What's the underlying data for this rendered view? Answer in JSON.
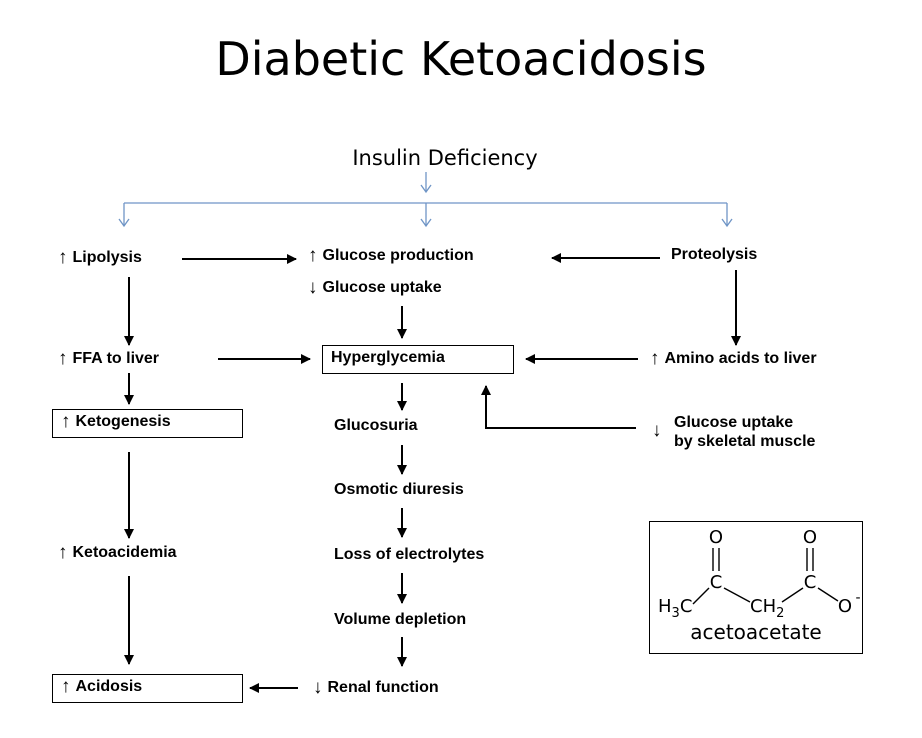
{
  "title": "Diabetic Ketoacidosis",
  "root": "Insulin Deficiency",
  "glyphs": {
    "up": "↑",
    "down": "↓"
  },
  "nodes": {
    "lipolysis": "Lipolysis",
    "glucose_production": "Glucose production",
    "proteolysis": "Proteolysis",
    "glucose_uptake": "Glucose uptake",
    "ffa_to_liver": "FFA to liver",
    "hyperglycemia": "Hyperglycemia",
    "amino_acids_to_liver": "Amino acids to liver",
    "ketogenesis": "Ketogenesis",
    "glucosuria": "Glucosuria",
    "muscle_uptake_line1": "Glucose uptake",
    "muscle_uptake_line2": "by skeletal muscle",
    "osmotic_diuresis": "Osmotic diuresis",
    "ketoacidemia": "Ketoacidemia",
    "loss_of_electrolytes": "Loss of electrolytes",
    "volume_depletion": "Volume depletion",
    "acidosis": "Acidosis",
    "renal_function": "Renal function"
  },
  "chemistry": {
    "caption": "acetoacetate",
    "atoms": {
      "oxygen_1": "O",
      "carbon_1": "C",
      "oxygen_2": "O",
      "carbon_2": "C",
      "methyl_h": "H",
      "methyl_sub": "3",
      "methyl_c": "C",
      "methylene": "CH",
      "methylene_sub": "2",
      "oxygen_3": "O",
      "charge": "-"
    }
  },
  "colors": {
    "branch_lines": "#6f95c6",
    "arrows": "#000000",
    "text": "#000000"
  }
}
